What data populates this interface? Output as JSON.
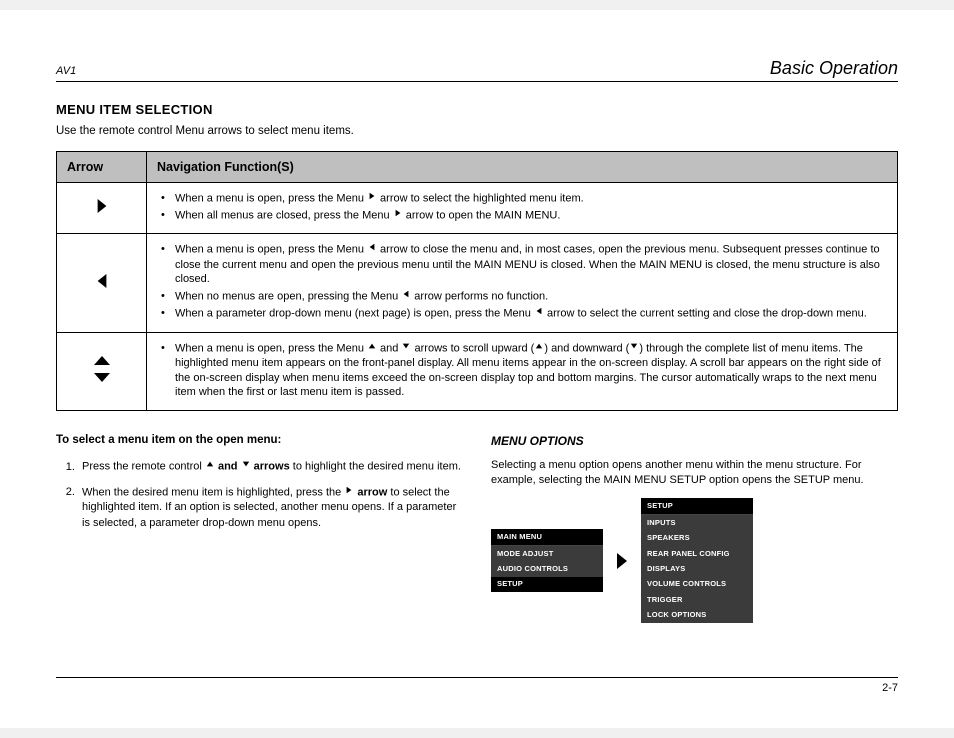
{
  "header": {
    "left": "AV1",
    "right": "Basic Operation"
  },
  "section": {
    "title": "MENU ITEM SELECTION",
    "intro": "Use the remote control Menu arrows to select menu items."
  },
  "table": {
    "headers": {
      "arrow": "Arrow",
      "func": "Navigation Function(S)"
    },
    "rows": [
      {
        "arrow_type": "right",
        "items": [
          {
            "pre": "When a menu is open, press the Menu ",
            "arrow": "right",
            "post": " arrow to select the highlighted menu item."
          },
          {
            "pre": "When all menus are closed, press the Menu ",
            "arrow": "right",
            "post": " arrow to open the MAIN MENU."
          }
        ]
      },
      {
        "arrow_type": "left",
        "items": [
          {
            "pre": "When a menu is open, press the Menu ",
            "arrow": "left",
            "post": " arrow to close the menu and, in most cases, open the previous menu. Subsequent presses continue to close the current menu and open the previous menu until the MAIN MENU is closed. When the MAIN MENU is closed, the menu structure is also closed."
          },
          {
            "pre": "When no menus are open, pressing the Menu ",
            "arrow": "left",
            "post": " arrow performs no function."
          },
          {
            "pre": "When a parameter drop-down menu (next page) is open, press the Menu ",
            "arrow": "left",
            "post": " arrow to select the current setting and close the drop-down menu."
          }
        ]
      },
      {
        "arrow_type": "updown",
        "items": [
          {
            "segments": [
              {
                "text": "When a menu is open, press the Menu "
              },
              {
                "arrow": "up"
              },
              {
                "text": " and "
              },
              {
                "arrow": "down"
              },
              {
                "text": " arrows to scroll upward ("
              },
              {
                "arrow": "up"
              },
              {
                "text": ") and downward ("
              },
              {
                "arrow": "down"
              },
              {
                "text": ") through the complete list of menu items. The highlighted menu item appears on the front-panel display. All menu items appear in the on-screen display. A scroll bar appears on the right side of the on-screen display when menu items exceed the on-screen display top and bottom margins. The cursor automatically wraps to the next menu item when the first or last menu item is passed."
              }
            ]
          }
        ]
      }
    ]
  },
  "left_col": {
    "heading": "To select a menu item on the open menu:",
    "steps": [
      {
        "pre": "Press the remote control ",
        "bold": " and ",
        "arrows": [
          "up",
          "down"
        ],
        "bold_suffix": " arrows",
        "post": " to highlight the desired menu item."
      },
      {
        "pre": "When the desired menu item is highlighted, press the ",
        "arrow": "right",
        "bold": "arrow",
        "post": " to select the highlighted item. If an option is selected, another menu opens. If a parameter is selected, a parameter drop-down menu opens."
      }
    ]
  },
  "right_col": {
    "heading": "MENU OPTIONS",
    "text": "Selecting a menu option opens another menu within the menu structure. For example, selecting the MAIN MENU SETUP option opens the SETUP menu.",
    "menu_left": {
      "title": "MAIN MENU",
      "items": [
        "MODE ADJUST",
        "AUDIO CONTROLS",
        "SETUP"
      ],
      "selected_index": 2
    },
    "menu_right": {
      "title": "SETUP",
      "items": [
        "INPUTS",
        "SPEAKERS",
        "REAR PANEL CONFIG",
        "DISPLAYS",
        "VOLUME CONTROLS",
        "TRIGGER",
        "LOCK OPTIONS"
      ],
      "selected_index": -1
    }
  },
  "footer": {
    "page": "2-7"
  },
  "colors": {
    "table_header_bg": "#bfbfbf",
    "menu_bg": "#000000",
    "menu_item_bg": "#3b3b3b",
    "text": "#000000"
  }
}
